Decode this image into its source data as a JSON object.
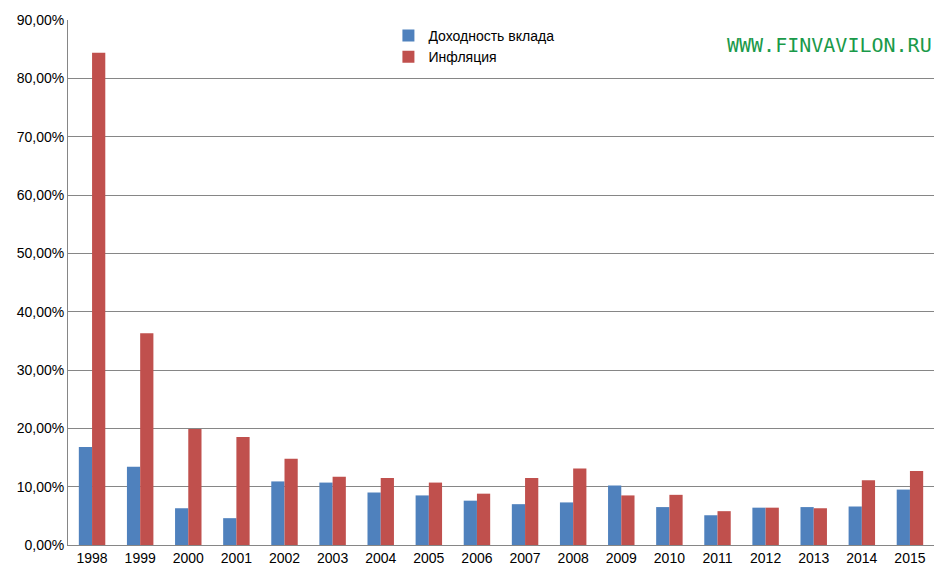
{
  "chart_data": {
    "type": "bar",
    "categories": [
      "1998",
      "1999",
      "2000",
      "2001",
      "2002",
      "2003",
      "2004",
      "2005",
      "2006",
      "2007",
      "2008",
      "2009",
      "2010",
      "2011",
      "2012",
      "2013",
      "2014",
      "2015"
    ],
    "series": [
      {
        "name": "Доходность вклада",
        "color": "#4f81bd",
        "values": [
          16.8,
          13.4,
          6.3,
          4.6,
          10.9,
          10.7,
          9.0,
          8.5,
          7.6,
          7.0,
          7.3,
          10.2,
          6.5,
          5.1,
          6.4,
          6.5,
          6.6,
          9.5
        ]
      },
      {
        "name": "Инфляция",
        "color": "#c0504d",
        "values": [
          84.4,
          36.3,
          19.9,
          18.5,
          14.8,
          11.7,
          11.5,
          10.7,
          8.8,
          11.5,
          13.1,
          8.5,
          8.6,
          5.8,
          6.4,
          6.3,
          11.1,
          12.7
        ]
      }
    ],
    "ylim": [
      0,
      90
    ],
    "yticks": [
      {
        "value": 0,
        "label": "0,00%"
      },
      {
        "value": 10,
        "label": "10,00%"
      },
      {
        "value": 20,
        "label": "20,00%"
      },
      {
        "value": 30,
        "label": "30,00%"
      },
      {
        "value": 40,
        "label": "40,00%"
      },
      {
        "value": 50,
        "label": "50,00%"
      },
      {
        "value": 60,
        "label": "60,00%"
      },
      {
        "value": 70,
        "label": "70,00%"
      },
      {
        "value": 80,
        "label": "80,00%"
      },
      {
        "value": 90,
        "label": "90,00%"
      }
    ],
    "grid": true,
    "legend": "top",
    "annotations": [
      {
        "text": "WWW.FINVAVILON.RU",
        "color": "#1a9a4a"
      }
    ]
  }
}
